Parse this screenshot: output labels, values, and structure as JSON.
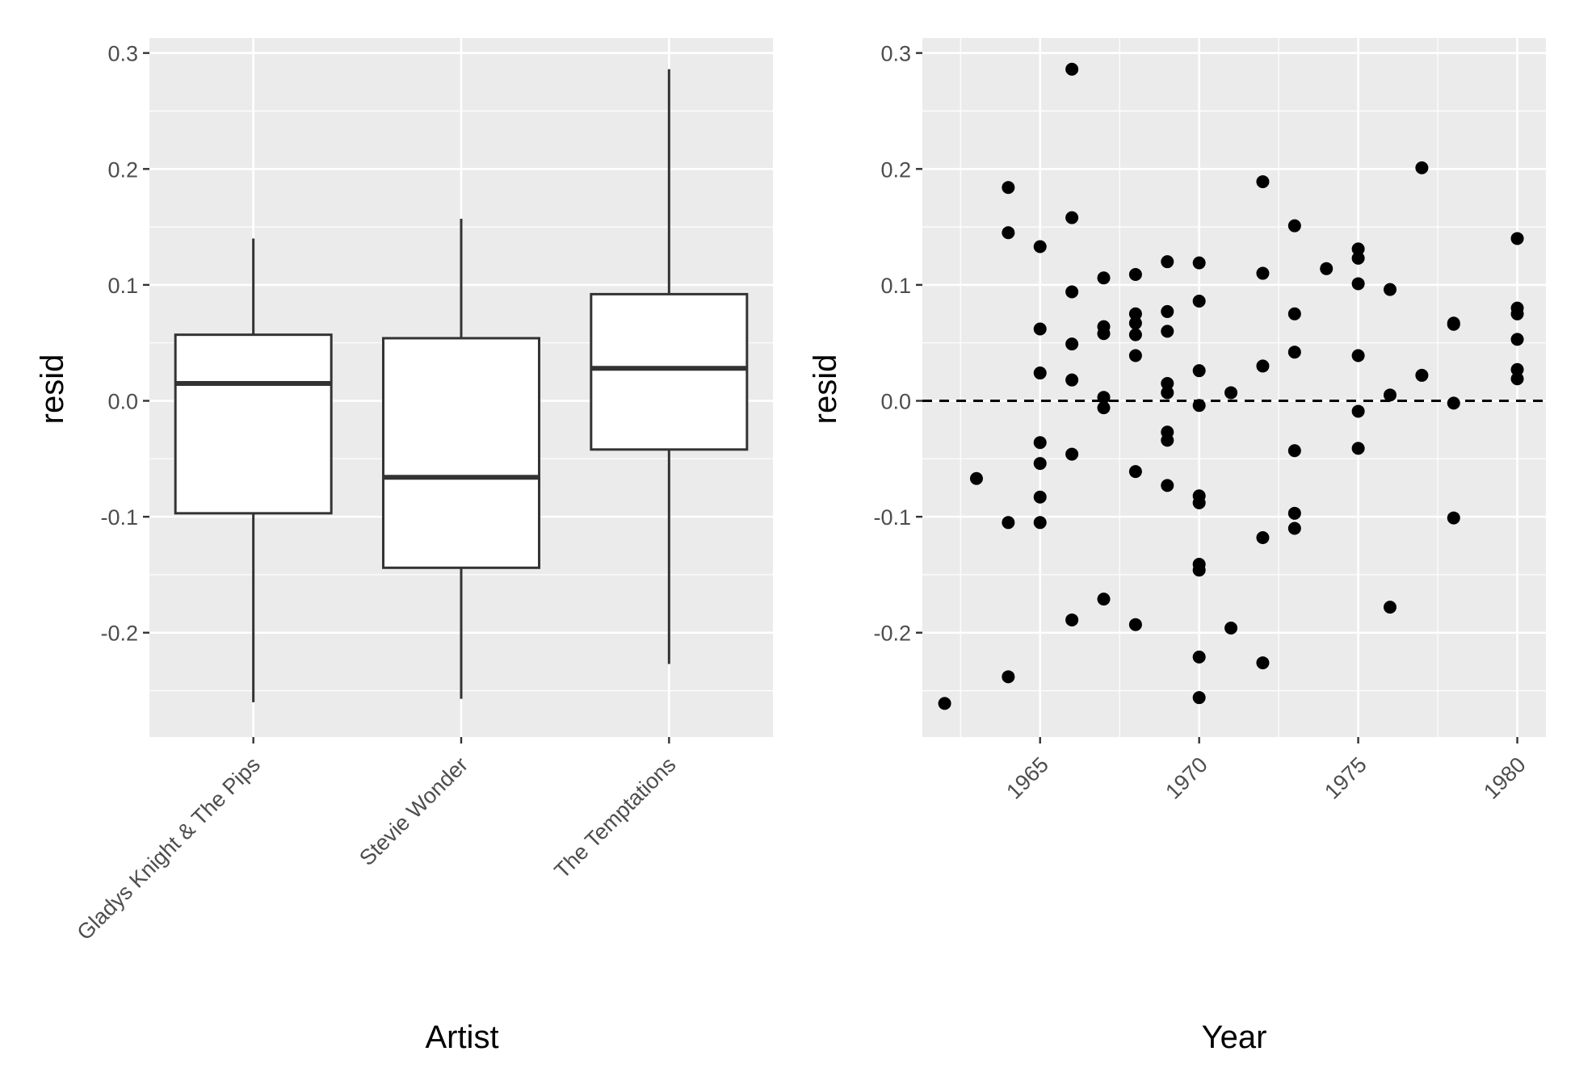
{
  "colors": {
    "panel_background": "#ebebeb",
    "grid": "#ffffff",
    "box_line": "#333333",
    "box_fill": "#ffffff",
    "point": "#000000",
    "tick_text": "#4d4d4d"
  },
  "chart_data": [
    {
      "type": "box",
      "xlabel": "Artist",
      "ylabel": "resid",
      "ylim": [
        -0.29,
        0.313
      ],
      "y_ticks": [
        {
          "value": 0.3,
          "label": "0.3"
        },
        {
          "value": 0.2,
          "label": "0.2"
        },
        {
          "value": 0.1,
          "label": "0.1"
        },
        {
          "value": 0.0,
          "label": "0.0"
        },
        {
          "value": -0.1,
          "label": "-0.1"
        },
        {
          "value": -0.2,
          "label": "-0.2"
        }
      ],
      "grid": true,
      "boxes": [
        {
          "category": "Gladys Knight & The Pips",
          "whisker_low": -0.26,
          "q1": -0.097,
          "median": 0.015,
          "q3": 0.057,
          "whisker_high": 0.14
        },
        {
          "category": "Stevie Wonder",
          "whisker_low": -0.257,
          "q1": -0.144,
          "median": -0.066,
          "q3": 0.054,
          "whisker_high": 0.157
        },
        {
          "category": "The Temptations",
          "whisker_low": -0.227,
          "q1": -0.042,
          "median": 0.028,
          "q3": 0.092,
          "whisker_high": 0.286
        }
      ]
    },
    {
      "type": "scatter",
      "xlabel": "Year",
      "ylabel": "resid",
      "xlim": [
        1961.3,
        1980.9
      ],
      "ylim": [
        -0.29,
        0.313
      ],
      "x_ticks": [
        {
          "value": 1965,
          "label": "1965"
        },
        {
          "value": 1970,
          "label": "1970"
        },
        {
          "value": 1975,
          "label": "1975"
        },
        {
          "value": 1980,
          "label": "1980"
        }
      ],
      "y_ticks": [
        {
          "value": 0.3,
          "label": "0.3"
        },
        {
          "value": 0.2,
          "label": "0.2"
        },
        {
          "value": 0.1,
          "label": "0.1"
        },
        {
          "value": 0.0,
          "label": "0.0"
        },
        {
          "value": -0.1,
          "label": "-0.1"
        },
        {
          "value": -0.2,
          "label": "-0.2"
        }
      ],
      "grid": true,
      "reference_line": {
        "y": 0.0,
        "style": "dashed"
      },
      "points": [
        {
          "x": 1962,
          "y": -0.261
        },
        {
          "x": 1963,
          "y": -0.067
        },
        {
          "x": 1964,
          "y": 0.184
        },
        {
          "x": 1964,
          "y": 0.145
        },
        {
          "x": 1964,
          "y": -0.105
        },
        {
          "x": 1964,
          "y": -0.238
        },
        {
          "x": 1965,
          "y": 0.133
        },
        {
          "x": 1965,
          "y": 0.062
        },
        {
          "x": 1965,
          "y": 0.024
        },
        {
          "x": 1965,
          "y": -0.036
        },
        {
          "x": 1965,
          "y": -0.054
        },
        {
          "x": 1965,
          "y": -0.083
        },
        {
          "x": 1965,
          "y": -0.105
        },
        {
          "x": 1966,
          "y": 0.286
        },
        {
          "x": 1966,
          "y": 0.158
        },
        {
          "x": 1966,
          "y": 0.094
        },
        {
          "x": 1966,
          "y": 0.049
        },
        {
          "x": 1966,
          "y": 0.018
        },
        {
          "x": 1966,
          "y": -0.046
        },
        {
          "x": 1966,
          "y": -0.189
        },
        {
          "x": 1967,
          "y": 0.106
        },
        {
          "x": 1967,
          "y": 0.064
        },
        {
          "x": 1967,
          "y": 0.058
        },
        {
          "x": 1967,
          "y": 0.003
        },
        {
          "x": 1967,
          "y": -0.006
        },
        {
          "x": 1967,
          "y": -0.171
        },
        {
          "x": 1968,
          "y": 0.109
        },
        {
          "x": 1968,
          "y": 0.075
        },
        {
          "x": 1968,
          "y": 0.067
        },
        {
          "x": 1968,
          "y": 0.057
        },
        {
          "x": 1968,
          "y": 0.039
        },
        {
          "x": 1968,
          "y": -0.061
        },
        {
          "x": 1968,
          "y": -0.193
        },
        {
          "x": 1969,
          "y": 0.12
        },
        {
          "x": 1969,
          "y": 0.077
        },
        {
          "x": 1969,
          "y": 0.06
        },
        {
          "x": 1969,
          "y": 0.015
        },
        {
          "x": 1969,
          "y": 0.007
        },
        {
          "x": 1969,
          "y": -0.027
        },
        {
          "x": 1969,
          "y": -0.034
        },
        {
          "x": 1969,
          "y": -0.073
        },
        {
          "x": 1970,
          "y": 0.119
        },
        {
          "x": 1970,
          "y": 0.086
        },
        {
          "x": 1970,
          "y": 0.026
        },
        {
          "x": 1970,
          "y": -0.004
        },
        {
          "x": 1970,
          "y": -0.082
        },
        {
          "x": 1970,
          "y": -0.088
        },
        {
          "x": 1970,
          "y": -0.141
        },
        {
          "x": 1970,
          "y": -0.146
        },
        {
          "x": 1970,
          "y": -0.221
        },
        {
          "x": 1970,
          "y": -0.256
        },
        {
          "x": 1971,
          "y": 0.007
        },
        {
          "x": 1971,
          "y": -0.196
        },
        {
          "x": 1972,
          "y": 0.189
        },
        {
          "x": 1972,
          "y": 0.11
        },
        {
          "x": 1972,
          "y": 0.03
        },
        {
          "x": 1972,
          "y": -0.118
        },
        {
          "x": 1972,
          "y": -0.226
        },
        {
          "x": 1973,
          "y": 0.151
        },
        {
          "x": 1973,
          "y": 0.075
        },
        {
          "x": 1973,
          "y": 0.042
        },
        {
          "x": 1973,
          "y": -0.043
        },
        {
          "x": 1973,
          "y": -0.097
        },
        {
          "x": 1973,
          "y": -0.11
        },
        {
          "x": 1974,
          "y": 0.114
        },
        {
          "x": 1975,
          "y": 0.131
        },
        {
          "x": 1975,
          "y": 0.123
        },
        {
          "x": 1975,
          "y": 0.101
        },
        {
          "x": 1975,
          "y": 0.039
        },
        {
          "x": 1975,
          "y": -0.009
        },
        {
          "x": 1975,
          "y": -0.041
        },
        {
          "x": 1976,
          "y": 0.096
        },
        {
          "x": 1976,
          "y": 0.005
        },
        {
          "x": 1976,
          "y": -0.178
        },
        {
          "x": 1977,
          "y": 0.201
        },
        {
          "x": 1977,
          "y": 0.022
        },
        {
          "x": 1978,
          "y": 0.067
        },
        {
          "x": 1978,
          "y": 0.066
        },
        {
          "x": 1978,
          "y": -0.002
        },
        {
          "x": 1978,
          "y": -0.101
        },
        {
          "x": 1980,
          "y": 0.14
        },
        {
          "x": 1980,
          "y": 0.08
        },
        {
          "x": 1980,
          "y": 0.075
        },
        {
          "x": 1980,
          "y": 0.053
        },
        {
          "x": 1980,
          "y": 0.027
        },
        {
          "x": 1980,
          "y": 0.019
        }
      ]
    }
  ]
}
